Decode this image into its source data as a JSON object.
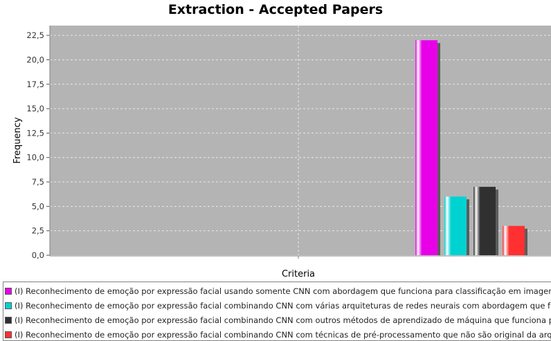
{
  "chart_data": {
    "type": "bar",
    "title": "Extraction - Accepted Papers",
    "xlabel": "Criteria",
    "ylabel": "Frequency",
    "ylim": [
      0,
      23.5
    ],
    "yticks": [
      "0,0",
      "2,5",
      "5,0",
      "7,5",
      "10,0",
      "12,5",
      "15,0",
      "17,5",
      "20,0",
      "22,5"
    ],
    "ytick_values": [
      0,
      2.5,
      5,
      7.5,
      10,
      12.5,
      15,
      17.5,
      20,
      22.5
    ],
    "grid": true,
    "legend_position": "bottom",
    "plot_background": "#b4b4b4",
    "series": [
      {
        "name": "(I) Reconhecimento de emoção por expressão facial usando somente CNN com abordagem que funciona para classificação em imagem.",
        "value": 22,
        "color": "#e800e8"
      },
      {
        "name": "(I) Reconhecimento de emoção por expressão facial combinando CNN com várias arquiteturas de redes neurais com abordagem que funciona",
        "value": 6,
        "color": "#00d2d2"
      },
      {
        "name": "(I) Reconhecimento de emoção por expressão facial combinando CNN com outros métodos de aprendizado de máquina que funciona para clas",
        "value": 7,
        "color": "#303030"
      },
      {
        "name": "(I) Reconhecimento de emoção por expressão facial combinando CNN com técnicas de pré-processamento que não são original da arquitetura",
        "value": 3,
        "color": "#ff3030"
      }
    ]
  }
}
